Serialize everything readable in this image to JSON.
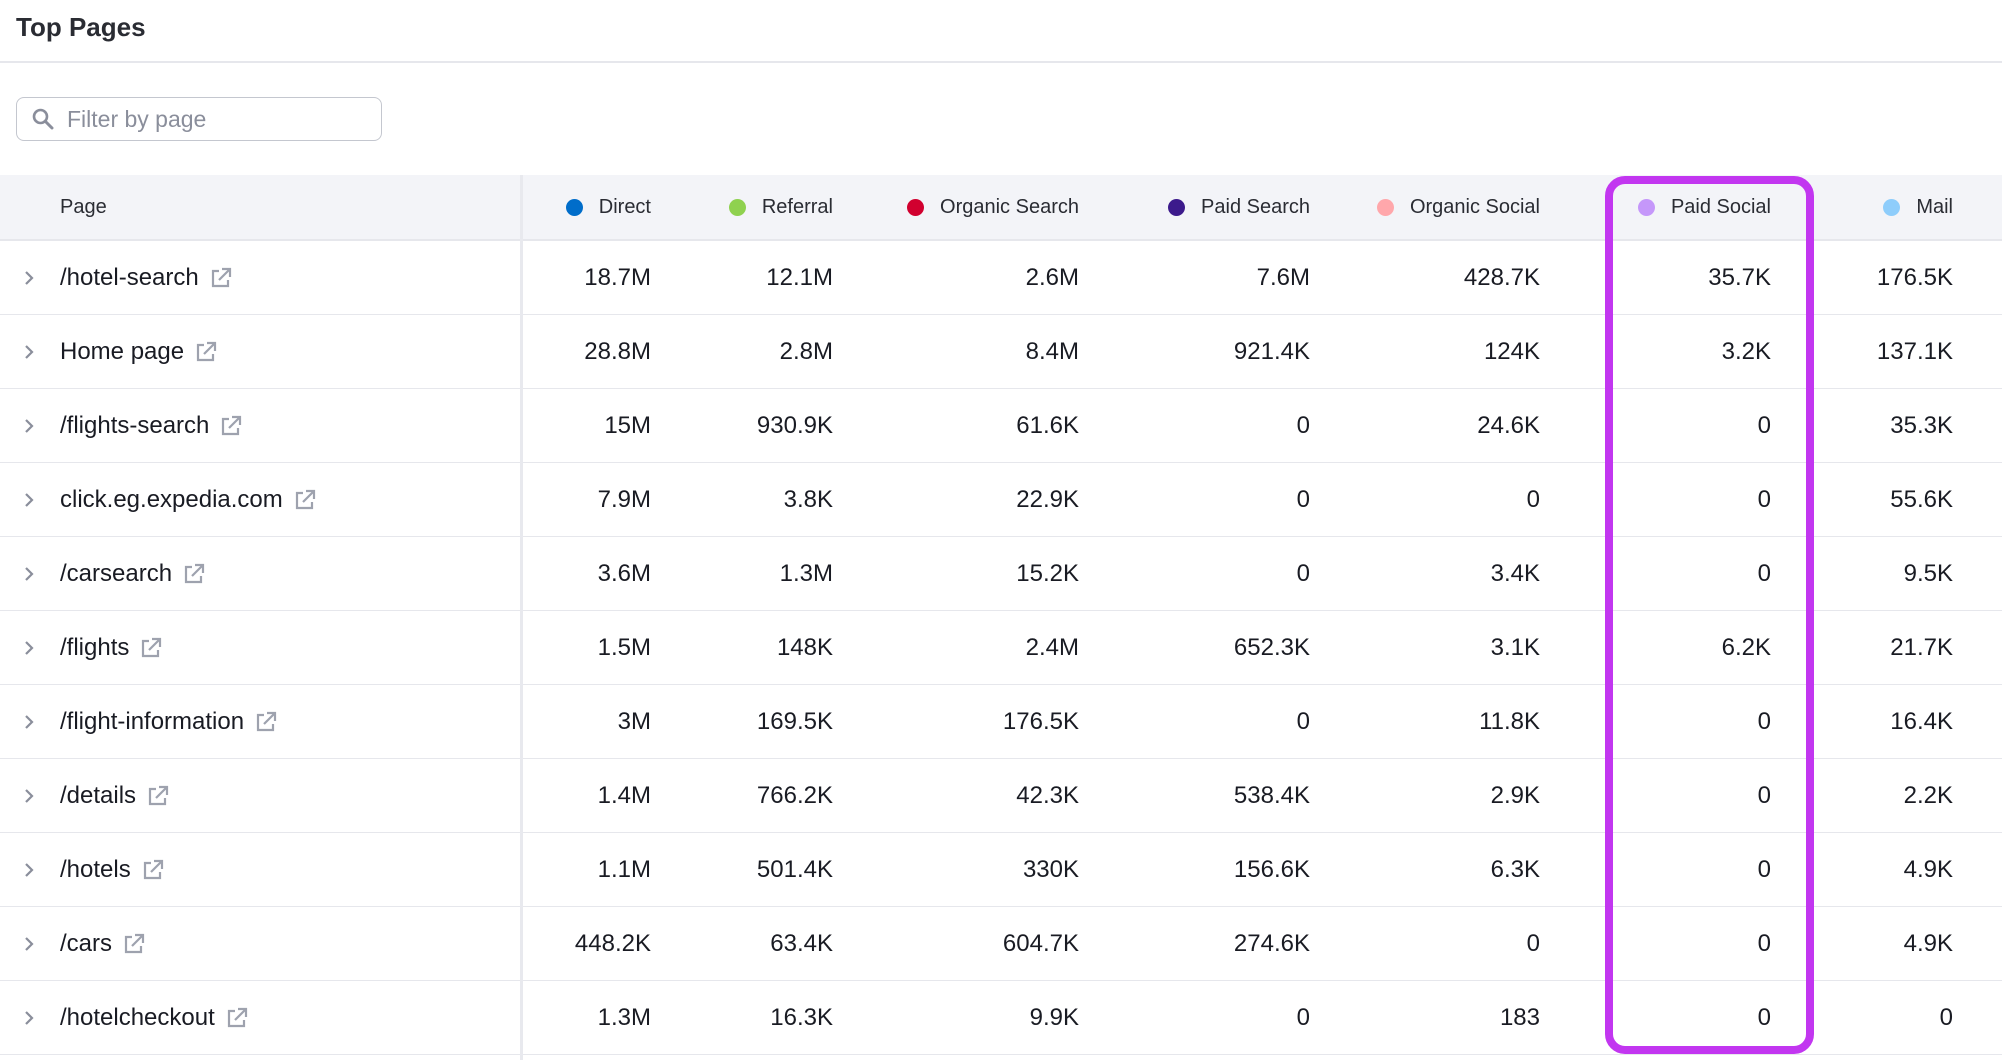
{
  "title": "Top Pages",
  "search": {
    "placeholder": "Filter by page",
    "value": ""
  },
  "columns": [
    {
      "label": "Page"
    },
    {
      "label": "Direct",
      "color": "#006dca"
    },
    {
      "label": "Referral",
      "color": "#8fd14f"
    },
    {
      "label": "Organic Search",
      "color": "#d1002f"
    },
    {
      "label": "Paid Search",
      "color": "#3c1a8c"
    },
    {
      "label": "Organic Social",
      "color": "#ffa7ab"
    },
    {
      "label": "Paid Social",
      "color": "#c597fa"
    },
    {
      "label": "Mail",
      "color": "#8ecdfb"
    }
  ],
  "highlight": {
    "column": "Paid Social",
    "color": "#c236f0"
  },
  "rows": [
    {
      "page": "/hotel-search",
      "values": [
        "18.7M",
        "12.1M",
        "2.6M",
        "7.6M",
        "428.7K",
        "35.7K",
        "176.5K"
      ]
    },
    {
      "page": "Home page",
      "values": [
        "28.8M",
        "2.8M",
        "8.4M",
        "921.4K",
        "124K",
        "3.2K",
        "137.1K"
      ]
    },
    {
      "page": "/flights-search",
      "values": [
        "15M",
        "930.9K",
        "61.6K",
        "0",
        "24.6K",
        "0",
        "35.3K"
      ]
    },
    {
      "page": "click.eg.expedia.com",
      "values": [
        "7.9M",
        "3.8K",
        "22.9K",
        "0",
        "0",
        "0",
        "55.6K"
      ]
    },
    {
      "page": "/carsearch",
      "values": [
        "3.6M",
        "1.3M",
        "15.2K",
        "0",
        "3.4K",
        "0",
        "9.5K"
      ]
    },
    {
      "page": "/flights",
      "values": [
        "1.5M",
        "148K",
        "2.4M",
        "652.3K",
        "3.1K",
        "6.2K",
        "21.7K"
      ]
    },
    {
      "page": "/flight-information",
      "values": [
        "3M",
        "169.5K",
        "176.5K",
        "0",
        "11.8K",
        "0",
        "16.4K"
      ]
    },
    {
      "page": "/details",
      "values": [
        "1.4M",
        "766.2K",
        "42.3K",
        "538.4K",
        "2.9K",
        "0",
        "2.2K"
      ]
    },
    {
      "page": "/hotels",
      "values": [
        "1.1M",
        "501.4K",
        "330K",
        "156.6K",
        "6.3K",
        "0",
        "4.9K"
      ]
    },
    {
      "page": "/cars",
      "values": [
        "448.2K",
        "63.4K",
        "604.7K",
        "274.6K",
        "0",
        "0",
        "4.9K"
      ]
    },
    {
      "page": "/hotelcheckout",
      "values": [
        "1.3M",
        "16.3K",
        "9.9K",
        "0",
        "183",
        "0",
        "0"
      ]
    }
  ]
}
